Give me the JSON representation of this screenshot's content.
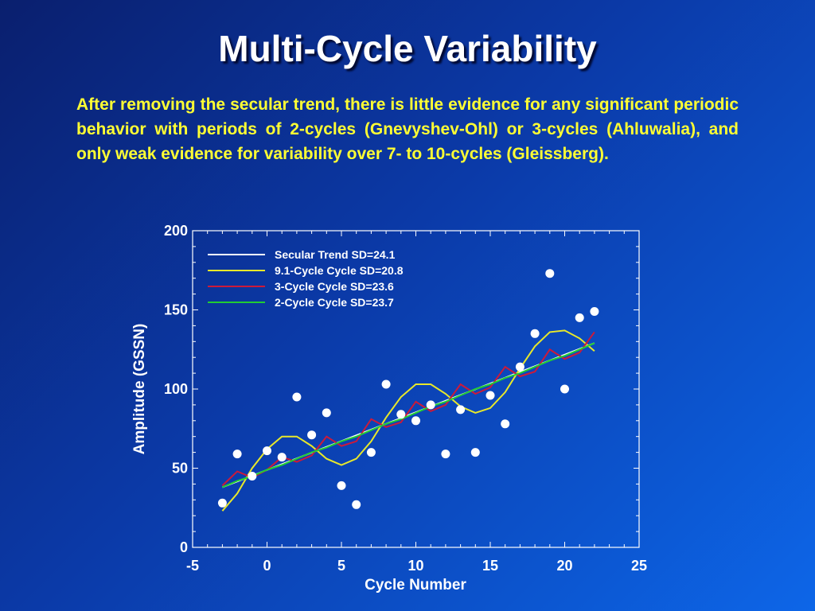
{
  "slide": {
    "title": "Multi-Cycle Variability",
    "body": "After removing the secular trend, there is little evidence for any significant periodic behavior with periods of 2-cycles (Gnevyshev-Ohl) or 3-cycles (Ahluwalia), and only weak evidence for variability over 7- to 10-cycles (Gleissberg).",
    "colors": {
      "background_start": "#0a1f6e",
      "background_end": "#0d66e8",
      "title": "#ffffff",
      "body_text": "#ffff33"
    }
  },
  "chart_data": {
    "type": "line",
    "xlabel": "Cycle Number",
    "ylabel": "Amplitude (GSSN)",
    "xlim": [
      -5,
      25
    ],
    "ylim": [
      0,
      200
    ],
    "xticks": [
      "-5",
      "0",
      "5",
      "10",
      "15",
      "20",
      "25"
    ],
    "yticks": [
      "0",
      "50",
      "100",
      "150",
      "200"
    ],
    "grid": false,
    "legend_position": "top-left",
    "points": {
      "x": [
        -3,
        -2,
        -1,
        0,
        1,
        2,
        3,
        4,
        5,
        6,
        7,
        8,
        9,
        10,
        11,
        12,
        13,
        14,
        15,
        16,
        17,
        18,
        19,
        20,
        21,
        22
      ],
      "y": [
        28,
        59,
        45,
        61,
        57,
        95,
        71,
        85,
        39,
        27,
        60,
        103,
        84,
        80,
        90,
        59,
        87,
        60,
        96,
        78,
        114,
        135,
        173,
        100,
        145,
        149
      ],
      "color": "#ffffff"
    },
    "series": [
      {
        "name": "Secular Trend SD=24.1",
        "color": "#ffffff",
        "x": [
          -3,
          22
        ],
        "y": [
          38,
          129
        ]
      },
      {
        "name": "9.1-Cycle Cycle SD=20.8",
        "color": "#e8e82a",
        "x": [
          -3,
          -2,
          -1,
          0,
          1,
          2,
          3,
          4,
          5,
          6,
          7,
          8,
          9,
          10,
          11,
          12,
          13,
          14,
          15,
          16,
          17,
          18,
          19,
          20,
          21,
          22
        ],
        "y": [
          23,
          34,
          50,
          62,
          70,
          70,
          64,
          56,
          52,
          56,
          67,
          82,
          95,
          103,
          103,
          97,
          89,
          85,
          88,
          98,
          113,
          127,
          136,
          137,
          132,
          124
        ]
      },
      {
        "name": "3-Cycle Cycle SD=23.6",
        "color": "#cc1a3a",
        "x": [
          -3,
          -2,
          -1,
          0,
          1,
          2,
          3,
          4,
          5,
          6,
          7,
          8,
          9,
          10,
          11,
          12,
          13,
          14,
          15,
          16,
          17,
          18,
          19,
          20,
          21,
          22
        ],
        "y": [
          39,
          48,
          44,
          49,
          57,
          54,
          58,
          70,
          64,
          67,
          81,
          76,
          79,
          92,
          86,
          90,
          103,
          97,
          101,
          114,
          108,
          111,
          125,
          119,
          123,
          136
        ]
      },
      {
        "name": "2-Cycle Cycle SD=23.7",
        "color": "#22cc33",
        "x": [
          -3,
          -2,
          -1,
          0,
          1,
          2,
          3,
          4,
          5,
          6,
          7,
          8,
          9,
          10,
          11,
          12,
          13,
          14,
          15,
          16,
          17,
          18,
          19,
          20,
          21,
          22
        ],
        "y": [
          38,
          42,
          45,
          49,
          52,
          56,
          60,
          63,
          67,
          70,
          74,
          78,
          81,
          85,
          89,
          92,
          96,
          100,
          103,
          107,
          110,
          114,
          118,
          121,
          125,
          129
        ]
      }
    ]
  }
}
